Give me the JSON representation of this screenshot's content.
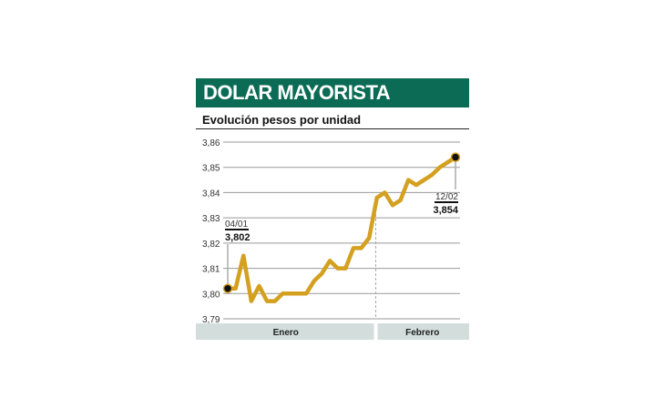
{
  "chart_data": {
    "type": "line",
    "title": "DOLAR MAYORISTA",
    "subtitle": "Evolución pesos por unidad",
    "xlabel": "",
    "ylabel": "",
    "ylim": [
      3.79,
      3.86
    ],
    "yticks": [
      "3,86",
      "3,85",
      "3,84",
      "3,83",
      "3,82",
      "3,81",
      "3,80",
      "3,79"
    ],
    "ytick_values": [
      3.86,
      3.85,
      3.84,
      3.83,
      3.82,
      3.81,
      3.8,
      3.79
    ],
    "grid": true,
    "months": [
      {
        "label": "Enero",
        "start": 0,
        "end": 19
      },
      {
        "label": "Febrero",
        "start": 19,
        "end": 29
      }
    ],
    "series": [
      {
        "color": "#d4a020",
        "values": [
          3.802,
          3.802,
          3.815,
          3.797,
          3.803,
          3.797,
          3.797,
          3.8,
          3.8,
          3.8,
          3.8,
          3.805,
          3.808,
          3.813,
          3.81,
          3.81,
          3.818,
          3.818,
          3.822,
          3.838,
          3.84,
          3.835,
          3.837,
          3.845,
          3.843,
          3.845,
          3.847,
          3.85,
          3.852,
          3.854
        ]
      }
    ],
    "annotations": [
      {
        "index": 0,
        "date": "04/01",
        "value": "3,802"
      },
      {
        "index": 29,
        "date": "12/02",
        "value": "3,854"
      }
    ],
    "colors": {
      "header": "#0b6b55",
      "band": "#d3dedc",
      "grid": "#999999"
    }
  }
}
